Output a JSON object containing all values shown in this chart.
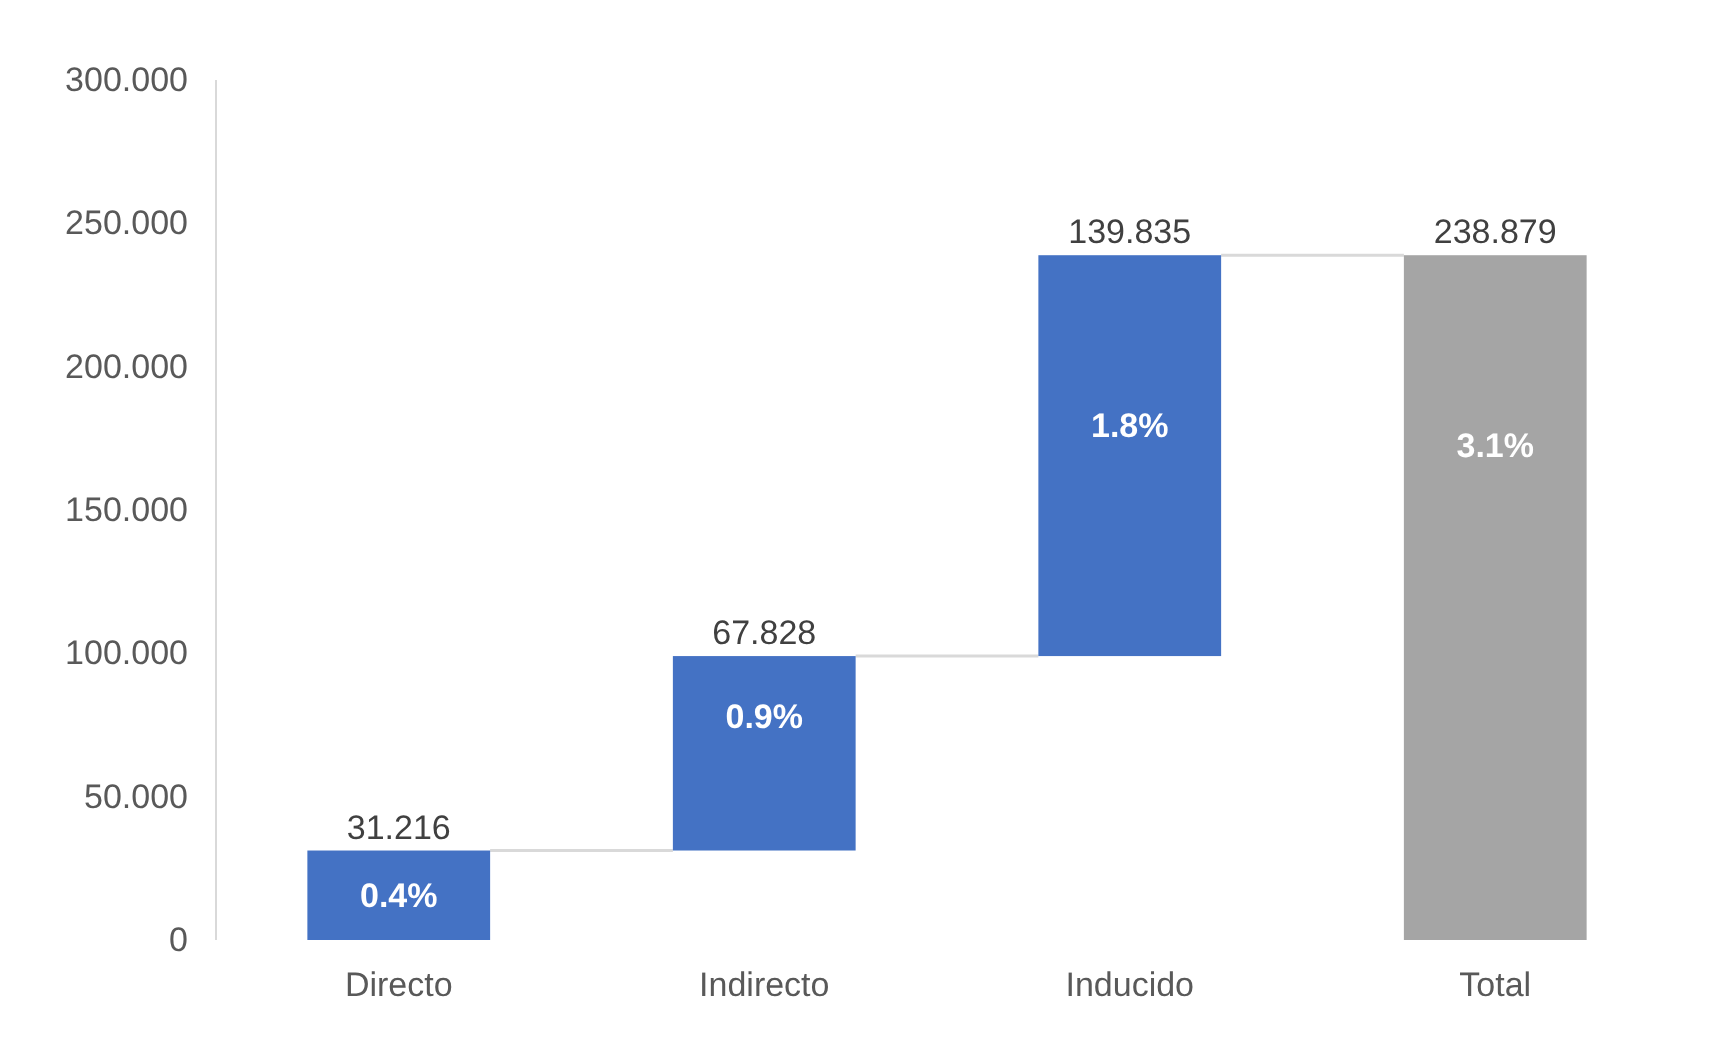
{
  "chart_data": {
    "type": "bar",
    "categories": [
      "Directo",
      "Indirecto",
      "Inducido",
      "Total"
    ],
    "values": [
      31.216,
      67.828,
      139.835,
      238.879
    ],
    "base": [
      0,
      31.216,
      99.044,
      0
    ],
    "colors": [
      "#4472c4",
      "#4472c4",
      "#4472c4",
      "#a5a5a5"
    ],
    "data_labels": true,
    "annotations": [
      "0.4%",
      "0.9%",
      "1.8%",
      "3.1%"
    ],
    "ylim": [
      0,
      300
    ],
    "yticks": [
      0,
      {
        "value": 50,
        "label": "50.000"
      },
      {
        "value": 100,
        "label": "100.000"
      },
      {
        "value": 150,
        "label": "150.000"
      },
      {
        "value": 200,
        "label": "200.000"
      },
      {
        "value": 250,
        "label": "250.000"
      },
      {
        "value": 300,
        "label": "300.000"
      }
    ],
    "grid": false
  }
}
